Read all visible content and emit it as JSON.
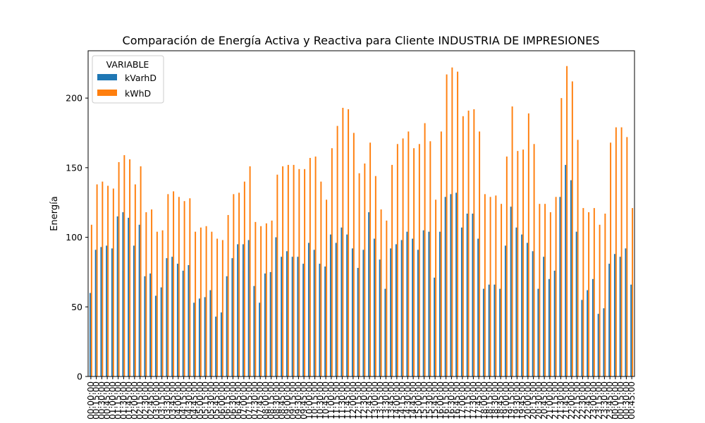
{
  "chart_data": {
    "type": "bar",
    "title": "Comparación de Energía Activa y Reactiva para Cliente INDUSTRIA DE IMPRESIONES",
    "xlabel": "",
    "ylabel": "Energía",
    "ylim": [
      0,
      234
    ],
    "yticks": [
      0,
      50,
      100,
      150,
      200
    ],
    "grid": false,
    "legend": {
      "title": "VARIABLE",
      "placement": "top-left"
    },
    "colors": {
      "kVarhD": "#1f77b4",
      "kWhD": "#ff7f0e"
    },
    "categories": [
      "00:00:00",
      "00:15:00",
      "00:30:00",
      "00:45:00",
      "01:00:00",
      "01:15:00",
      "01:30:00",
      "01:45:00",
      "02:00:00",
      "02:15:00",
      "02:30:00",
      "02:45:00",
      "03:00:00",
      "03:15:00",
      "03:30:00",
      "03:45:00",
      "04:00:00",
      "04:15:00",
      "04:30:00",
      "04:45:00",
      "05:00:00",
      "05:15:00",
      "05:30:00",
      "05:45:00",
      "06:00:00",
      "06:15:00",
      "06:30:00",
      "06:45:00",
      "07:00:00",
      "07:15:00",
      "07:30:00",
      "07:45:00",
      "08:00:00",
      "08:15:00",
      "08:30:00",
      "08:45:00",
      "09:00:00",
      "09:15:00",
      "09:30:00",
      "09:45:00",
      "10:00:00",
      "10:15:00",
      "10:30:00",
      "10:45:00",
      "11:00:00",
      "11:15:00",
      "11:30:00",
      "11:45:00",
      "12:00:00",
      "12:15:00",
      "12:30:00",
      "12:45:00",
      "13:00:00",
      "13:15:00",
      "13:30:00",
      "13:45:00",
      "14:00:00",
      "14:15:00",
      "14:30:00",
      "14:45:00",
      "15:00:00",
      "15:15:00",
      "15:30:00",
      "15:45:00",
      "16:00:00",
      "16:15:00",
      "16:30:00",
      "16:45:00",
      "17:00:00",
      "17:15:00",
      "17:30:00",
      "17:45:00",
      "18:00:00",
      "18:15:00",
      "18:30:00",
      "18:45:00",
      "19:00:00",
      "19:15:00",
      "19:30:00",
      "19:45:00",
      "20:00:00",
      "20:15:00",
      "20:30:00",
      "20:45:00",
      "21:00:00",
      "21:15:00",
      "21:30:00",
      "21:45:00",
      "22:00:00",
      "22:15:00",
      "22:30:00",
      "22:45:00",
      "23:00:00",
      "23:15:00",
      "23:30:00",
      "23:45:00",
      "00:00:00",
      "00:15:00",
      "00:30:00",
      "00:45:00"
    ],
    "series": [
      {
        "name": "kVarhD",
        "values": [
          60,
          91,
          93,
          94,
          92,
          115,
          118,
          114,
          94,
          109,
          72,
          74,
          58,
          64,
          85,
          86,
          81,
          76,
          80,
          53,
          56,
          57,
          62,
          43,
          46,
          72,
          85,
          95,
          95,
          98,
          65,
          53,
          74,
          75,
          100,
          86,
          90,
          86,
          86,
          81,
          96,
          91,
          81,
          79,
          102,
          96,
          107,
          102,
          92,
          78,
          91,
          118,
          99,
          84,
          63,
          92,
          95,
          98,
          104,
          99,
          91,
          105,
          104,
          71,
          104,
          129,
          131,
          132,
          107,
          117,
          117,
          99,
          63,
          66,
          66,
          63,
          94,
          122,
          107,
          102,
          96,
          90,
          63,
          86,
          70,
          76,
          129,
          152,
          141,
          104,
          55,
          62,
          70,
          45,
          49,
          81,
          88,
          86,
          92,
          66
        ]
      },
      {
        "name": "kWhD",
        "values": [
          109,
          138,
          140,
          137,
          135,
          154,
          159,
          156,
          138,
          151,
          118,
          120,
          104,
          105,
          131,
          133,
          129,
          126,
          128,
          104,
          107,
          108,
          104,
          99,
          98,
          116,
          131,
          132,
          140,
          151,
          111,
          108,
          110,
          112,
          145,
          151,
          152,
          152,
          149,
          149,
          157,
          158,
          140,
          127,
          164,
          180,
          193,
          192,
          175,
          146,
          153,
          168,
          144,
          120,
          112,
          152,
          167,
          171,
          176,
          164,
          167,
          182,
          169,
          127,
          176,
          217,
          222,
          219,
          187,
          191,
          192,
          176,
          131,
          129,
          130,
          124,
          158,
          194,
          162,
          163,
          189,
          167,
          124,
          124,
          118,
          129,
          200,
          223,
          212,
          170,
          121,
          118,
          121,
          109,
          117,
          168,
          179,
          179,
          172,
          121
        ]
      }
    ]
  }
}
